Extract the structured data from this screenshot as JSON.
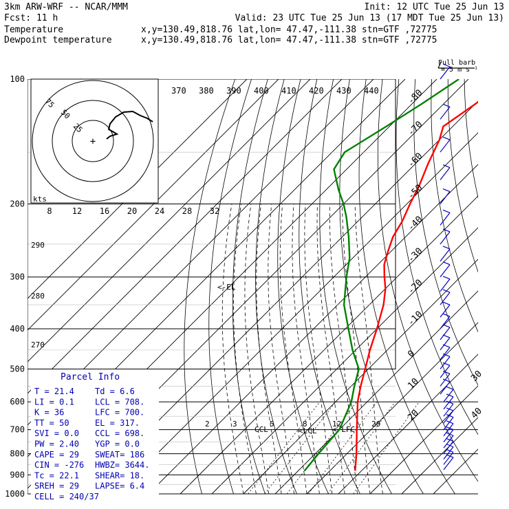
{
  "header": {
    "model": "3km ARW-WRF -- NCAR/MMM",
    "init": "Init: 12 UTC Tue 25 Jun 13",
    "fcst": "Fcst:    11 h",
    "valid": "Valid: 23 UTC Tue 25 Jun 13 (17 MDT Tue 25 Jun 13)"
  },
  "legend": [
    {
      "name": "Temperature",
      "location": "x,y=130.49,818.76   lat,lon= 47.47,-111.38  stn=GTF ,72775",
      "color": "#ff0000"
    },
    {
      "name": "Dewpoint temperature",
      "location": "x,y=130.49,818.76   lat,lon= 47.47,-111.38  stn=GTF ,72775",
      "color": "#008000"
    }
  ],
  "wind_key": {
    "line1": "Full barb",
    "line2": "= 5 m s⁻¹"
  },
  "parcel_info": {
    "title": "Parcel Info",
    "rows": [
      {
        "left": "T  =    21.4",
        "right": "Td =    6.6"
      },
      {
        "left": "LI =     0.1",
        "right": "LCL =  708."
      },
      {
        "left": "K  =      36",
        "right": "LFC =  700."
      },
      {
        "left": "TT =      50",
        "right": "EL  =  317."
      },
      {
        "left": "SVI =    0.0",
        "right": "CCL =  698."
      },
      {
        "left": "PW =    2.40",
        "right": "YGP =   0.0"
      },
      {
        "left": "CAPE =    29",
        "right": "SWEAT=  186"
      },
      {
        "left": "CIN =   -276",
        "right": "HWBZ= 3644."
      },
      {
        "left": "Tc =    22.1",
        "right": "SHEAR=  18."
      },
      {
        "left": "SREH =    29",
        "right": "LAPSE=  6.4"
      },
      {
        "left": "CELL = 240/37",
        "right": ""
      }
    ]
  },
  "annotations": {
    "el": "<-EL",
    "ccl": "CCL",
    "lcl": "<LCL",
    "lfc": "< LFC"
  },
  "hodograph_rings": [
    "75",
    "50",
    "25"
  ],
  "hodograph_units": "kts",
  "colors": {
    "temperature": "#ff0000",
    "dewpoint": "#008000",
    "wind": "#0000c0",
    "isobar": "#000000",
    "grid": "#999999"
  },
  "chart_data": {
    "type": "line",
    "subtype": "skew-T log-p sounding",
    "y_scale": "log",
    "ylim": [
      1000,
      100
    ],
    "pressure_ticks": [
      100,
      200,
      300,
      400,
      500,
      600,
      700,
      800,
      900,
      1000
    ],
    "isotherm_labels": [
      -80,
      -70,
      -60,
      -50,
      -40,
      -30,
      -20,
      -10,
      0,
      10,
      20,
      30,
      40
    ],
    "theta_labels": [
      370,
      380,
      390,
      400,
      410,
      420,
      430,
      440
    ],
    "hodograph_x_ticks": [
      8,
      12,
      16,
      20,
      24,
      28,
      32
    ],
    "theta_side_labels": [
      290,
      280,
      270
    ],
    "mixing_ratio_labels": [
      2,
      3,
      5,
      8,
      12,
      20
    ],
    "series": [
      {
        "name": "Temperature",
        "color": "#ff0000",
        "pressure": [
          880,
          800,
          700,
          600,
          550,
          500,
          450,
          400,
          350,
          320,
          300,
          280,
          260,
          240,
          220,
          200,
          180,
          160,
          140,
          130,
          115,
          100
        ],
        "temperature": [
          18,
          13,
          5.5,
          -3,
          -7,
          -11,
          -15.5,
          -20,
          -25.5,
          -30,
          -34,
          -38,
          -41,
          -44,
          -46,
          -49,
          -52,
          -56,
          -60,
          -63,
          -60,
          -57
        ]
      },
      {
        "name": "Dewpoint temperature",
        "color": "#008000",
        "pressure": [
          880,
          800,
          700,
          600,
          550,
          500,
          450,
          400,
          350,
          300,
          270,
          240,
          215,
          200,
          185,
          165,
          150,
          130,
          115,
          100
        ],
        "dewpoint": [
          2,
          1,
          0,
          -5,
          -9,
          -13,
          -21,
          -29,
          -38,
          -46,
          -51,
          -58,
          -65,
          -70,
          -76,
          -84,
          -86,
          -81,
          -77,
          -73
        ]
      }
    ]
  }
}
